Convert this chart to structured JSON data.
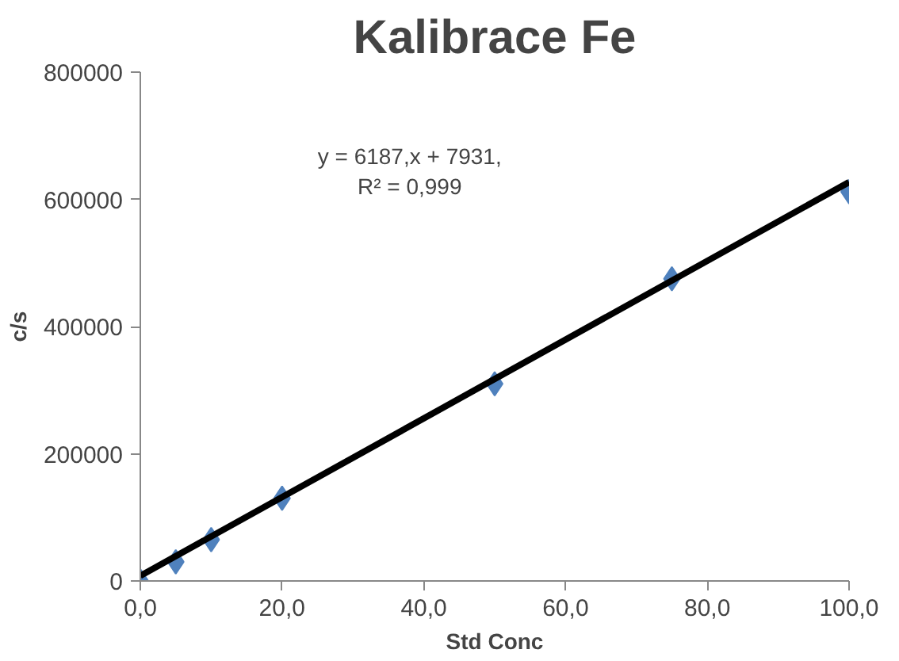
{
  "chart_data": {
    "type": "scatter",
    "title": "Kalibrace Fe",
    "xlabel": "Std Conc",
    "ylabel": "c/s",
    "annotations": [
      "y = 6187,x + 7931,\nR² = 0,999"
    ],
    "marker": "diamond",
    "series": [
      {
        "color": "#4f81bd",
        "x": [
          0,
          5,
          10,
          20,
          50,
          75,
          100
        ],
        "values": [
          0,
          30000,
          65000,
          130000,
          310000,
          475000,
          612000
        ]
      },
      {
        "type": "line",
        "color": "#000000",
        "marker": "none",
        "x": [
          0,
          100
        ],
        "values": [
          8000,
          627000
        ]
      }
    ],
    "xlim": [
      0,
      100
    ],
    "ylim": [
      0,
      800000
    ],
    "xticks": [
      {
        "value": 0,
        "label": "0,0"
      },
      {
        "value": 20,
        "label": "20,0"
      },
      {
        "value": 40,
        "label": "40,0"
      },
      {
        "value": 60,
        "label": "60,0"
      },
      {
        "value": 80,
        "label": "80,0"
      },
      {
        "value": 100,
        "label": "100,0"
      }
    ],
    "yticks": [
      0,
      200000,
      400000,
      600000,
      800000
    ],
    "grid": false
  }
}
